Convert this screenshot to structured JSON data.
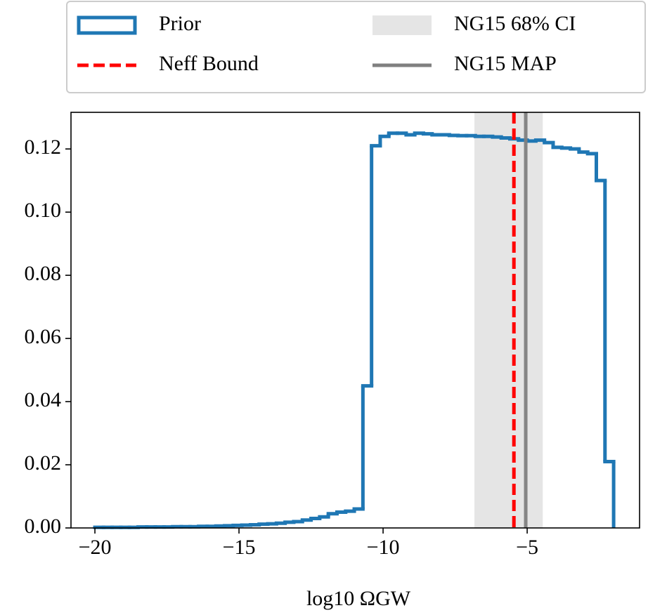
{
  "chart_data": {
    "type": "histogram",
    "xlabel": "log10 ΩGW",
    "bins": [
      -20,
      -19.7,
      -19.4,
      -19.1,
      -18.8,
      -18.5,
      -18.2,
      -17.9,
      -17.6,
      -17.3,
      -17,
      -16.7,
      -16.4,
      -16.1,
      -15.8,
      -15.5,
      -15.2,
      -14.9,
      -14.6,
      -14.3,
      -14,
      -13.7,
      -13.4,
      -13.1,
      -12.8,
      -12.5,
      -12.2,
      -11.9,
      -11.6,
      -11.3,
      -11,
      -10.7,
      -10.4,
      -10.1,
      -9.8,
      -9.5,
      -9.2,
      -8.9,
      -8.6,
      -8.3,
      -8,
      -7.7,
      -7.4,
      -7.1,
      -6.8,
      -6.5,
      -6.2,
      -5.9,
      -5.6,
      -5.3,
      -5,
      -4.7,
      -4.4,
      -4.1,
      -3.8,
      -3.5,
      -3.2,
      -2.9,
      -2.6,
      -2.3,
      -2
    ],
    "series": [
      {
        "name": "Prior",
        "color": "#1f77b4",
        "values": [
          0.0002,
          0.0002,
          0.0002,
          0.0002,
          0.0002,
          0.0003,
          0.0003,
          0.0003,
          0.0003,
          0.0004,
          0.0004,
          0.0004,
          0.0005,
          0.0005,
          0.0006,
          0.0007,
          0.0008,
          0.0009,
          0.001,
          0.0012,
          0.0013,
          0.0015,
          0.0018,
          0.002,
          0.0025,
          0.003,
          0.0035,
          0.0045,
          0.005,
          0.0053,
          0.006,
          0.045,
          0.121,
          0.124,
          0.125,
          0.125,
          0.1245,
          0.125,
          0.1248,
          0.1245,
          0.1245,
          0.1243,
          0.1242,
          0.1242,
          0.124,
          0.124,
          0.1238,
          0.1235,
          0.1232,
          0.1228,
          0.1225,
          0.1228,
          0.122,
          0.1205,
          0.1203,
          0.12,
          0.119,
          0.1185,
          0.11,
          0.021
        ]
      }
    ],
    "bands": [
      {
        "name": "NG15 68% CI",
        "color": "#e5e5e5",
        "x": [
          -6.83,
          -4.46
        ]
      }
    ],
    "vlines": [
      {
        "name": "Neff Bound",
        "color": "#ff0000",
        "dashed": true,
        "x": -5.46
      },
      {
        "name": "NG15 MAP",
        "color": "#808080",
        "dashed": false,
        "x": -5.05
      }
    ],
    "xlim": [
      -20.83,
      -1.1
    ],
    "ylim": [
      0,
      0.1316
    ],
    "xticks": [
      {
        "value": -20,
        "label": "−20"
      },
      {
        "value": -15,
        "label": "−15"
      },
      {
        "value": -10,
        "label": "−10"
      },
      {
        "value": -5,
        "label": "−5"
      }
    ],
    "yticks": [
      {
        "value": 0,
        "label": "0.00"
      },
      {
        "value": 0.02,
        "label": "0.02"
      },
      {
        "value": 0.04,
        "label": "0.04"
      },
      {
        "value": 0.06,
        "label": "0.06"
      },
      {
        "value": 0.08,
        "label": "0.08"
      },
      {
        "value": 0.1,
        "label": "0.10"
      },
      {
        "value": 0.12,
        "label": "0.12"
      }
    ]
  }
}
